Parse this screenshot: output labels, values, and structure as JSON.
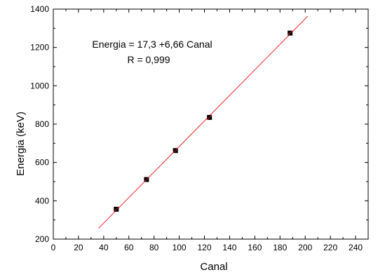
{
  "chart_data": {
    "type": "scatter",
    "xlabel": "Canal",
    "ylabel": "Energia (keV)",
    "xlim": [
      0,
      250
    ],
    "ylim": [
      200,
      1400
    ],
    "xticks": [
      0,
      20,
      40,
      60,
      80,
      100,
      120,
      140,
      160,
      180,
      200,
      220,
      240
    ],
    "yticks": [
      200,
      400,
      600,
      800,
      1000,
      1200,
      1400
    ],
    "series": [
      {
        "kind": "points",
        "x": [
          50,
          74,
          97,
          124,
          188
        ],
        "y": [
          356,
          511,
          662,
          835,
          1275
        ]
      },
      {
        "kind": "fit-line",
        "x": [
          36,
          202
        ],
        "y": [
          257,
          1363
        ]
      }
    ],
    "annotations": [
      "Energia = 17,3 +6,66 Canal",
      "R = 0,999"
    ],
    "grid": false,
    "legend": "none",
    "colors": {
      "line": "#e8262d",
      "marker": "#000000",
      "axis": "#000000"
    }
  }
}
